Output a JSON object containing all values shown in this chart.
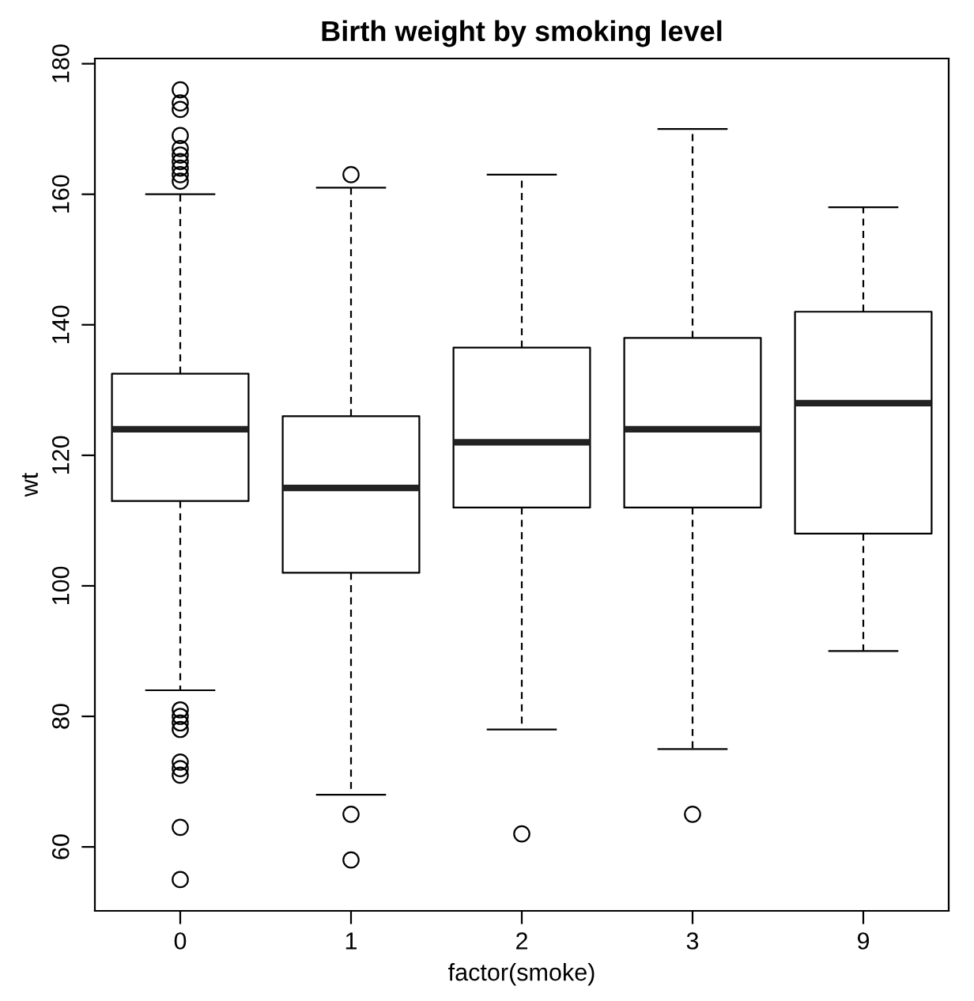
{
  "chart_data": {
    "type": "box",
    "title": "Birth weight by smoking level",
    "xlabel": "factor(smoke)",
    "ylabel": "wt",
    "categories": [
      "0",
      "1",
      "2",
      "3",
      "9"
    ],
    "boxes": [
      {
        "low": 84,
        "q1": 113,
        "median": 124,
        "q3": 132.5,
        "high": 160,
        "outliers": [
          176,
          174,
          173,
          169,
          167,
          166,
          165,
          164,
          163,
          162,
          81,
          80,
          79,
          78,
          73,
          72,
          71,
          63,
          55
        ]
      },
      {
        "low": 68,
        "q1": 102,
        "median": 115,
        "q3": 126,
        "high": 161,
        "outliers": [
          163,
          65,
          58
        ]
      },
      {
        "low": 78,
        "q1": 112,
        "median": 122,
        "q3": 136.5,
        "high": 163,
        "outliers": [
          62
        ]
      },
      {
        "low": 75,
        "q1": 112,
        "median": 124,
        "q3": 138,
        "high": 170,
        "outliers": [
          65
        ]
      },
      {
        "low": 90,
        "q1": 108,
        "median": 128,
        "q3": 142,
        "high": 158
      }
    ],
    "ylim": [
      50.2,
      180.8
    ],
    "yticks": [
      60,
      80,
      100,
      120,
      140,
      160,
      180
    ],
    "grid": false,
    "legend": false
  }
}
